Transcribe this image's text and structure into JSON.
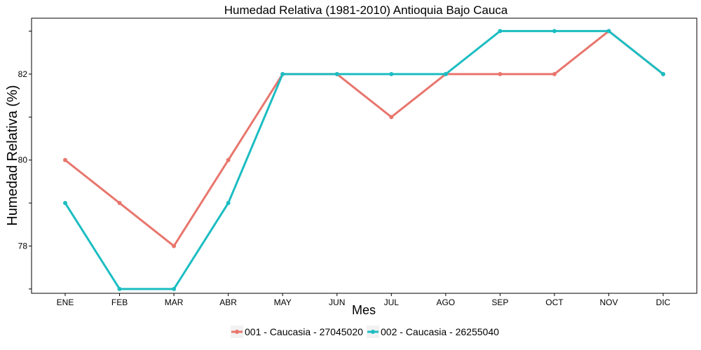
{
  "chart_data": {
    "type": "line",
    "title": "Humedad Relativa (1981-2010)  Antioquia Bajo Cauca",
    "xlabel": "Mes",
    "ylabel": "Humedad Relativa  (%)",
    "categories": [
      "ENE",
      "FEB",
      "MAR",
      "ABR",
      "MAY",
      "JUN",
      "JUL",
      "AGO",
      "SEP",
      "OCT",
      "NOV",
      "DIC"
    ],
    "ylim": [
      76.9,
      83.3
    ],
    "yticks": [
      78,
      80,
      82
    ],
    "grid": false,
    "legend_position": "bottom",
    "series": [
      {
        "name": "001 - Caucasia - 27045020",
        "color": "#E8766D",
        "values": [
          80,
          79,
          78,
          80,
          82,
          82,
          81,
          82,
          82,
          82,
          83,
          82
        ]
      },
      {
        "name": "002 - Caucasia - 26255040",
        "color": "#1CBDC2",
        "values": [
          79,
          77,
          77,
          79,
          82,
          82,
          82,
          82,
          83,
          83,
          83,
          82
        ]
      }
    ]
  }
}
